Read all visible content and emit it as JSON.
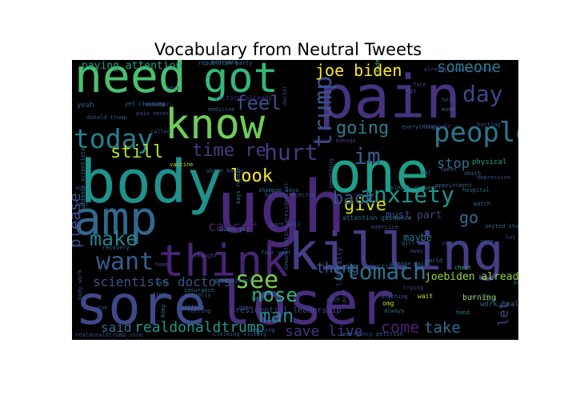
{
  "figure": {
    "title": "Vocabulary from Neutral Tweets",
    "background": "#ffffff",
    "canvas_background": "#000000",
    "colormap": "viridis"
  },
  "wordcloud": {
    "words": [
      {
        "text": "need",
        "color": "#4ac16d"
      },
      {
        "text": "got",
        "color": "#35b779"
      },
      {
        "text": "pain",
        "color": "#46327e"
      },
      {
        "text": "body",
        "color": "#21918c"
      },
      {
        "text": "ugh",
        "color": "#482878"
      },
      {
        "text": "one",
        "color": "#1f9e89"
      },
      {
        "text": "know",
        "color": "#6ece58"
      },
      {
        "text": "amp",
        "color": "#31688e"
      },
      {
        "text": "sore",
        "color": "#3e4989"
      },
      {
        "text": "loser",
        "color": "#472d7b"
      },
      {
        "text": "killing",
        "color": "#433e85"
      },
      {
        "text": "think",
        "color": "#482475"
      },
      {
        "text": "today",
        "color": "#26828e"
      },
      {
        "text": "people",
        "color": "#2a788e"
      },
      {
        "text": "anxiety",
        "color": "#1f968b"
      },
      {
        "text": "want",
        "color": "#365c8d"
      },
      {
        "text": "stomach",
        "color": "#2c728e"
      },
      {
        "text": "trump",
        "color": "#3b528b"
      },
      {
        "text": "hurt",
        "color": "#443a83"
      },
      {
        "text": "im",
        "color": "#375a8c"
      },
      {
        "text": "day",
        "color": "#3f4788"
      },
      {
        "text": "feel",
        "color": "#3d4d8a"
      },
      {
        "text": "joe biden",
        "color": "#fde725"
      },
      {
        "text": "someone",
        "color": "#277f8e"
      },
      {
        "text": "going",
        "color": "#287c8e"
      },
      {
        "text": "still",
        "color": "#b5de2b"
      },
      {
        "text": "time re",
        "color": "#433d84"
      },
      {
        "text": "look",
        "color": "#fde725"
      },
      {
        "text": "give",
        "color": "#d8e219"
      },
      {
        "text": "back",
        "color": "#39568c"
      },
      {
        "text": "stop",
        "color": "#2c718e"
      },
      {
        "text": "see",
        "color": "#7ad151"
      },
      {
        "text": "nose",
        "color": "#2db27d"
      },
      {
        "text": "man",
        "color": "#238a8d"
      },
      {
        "text": "make",
        "color": "#25858e"
      },
      {
        "text": "cancer",
        "color": "#481f70"
      },
      {
        "text": "please",
        "color": "#3b518b"
      },
      {
        "text": "go",
        "color": "#2d708e"
      },
      {
        "text": "must part",
        "color": "#414487"
      },
      {
        "text": "thing",
        "color": "#345f8d"
      },
      {
        "text": "scientists doctors",
        "color": "#3a548c"
      },
      {
        "text": "said",
        "color": "#2f6b8e"
      },
      {
        "text": "realdonaldtrump",
        "color": "#1f988b"
      },
      {
        "text": "save live",
        "color": "#453581"
      },
      {
        "text": "come",
        "color": "#482173"
      },
      {
        "text": "take",
        "color": "#2e6e8e"
      },
      {
        "text": "let",
        "color": "#3f4889"
      },
      {
        "text": "paying attention",
        "color": "#1fa287"
      },
      {
        "text": "maybe",
        "color": "#2a768e"
      },
      {
        "text": "joebiden already",
        "color": "#90d743"
      },
      {
        "text": "burning",
        "color": "#a2da37"
      },
      {
        "text": "presidential leadership",
        "color": "#3e4a89"
      },
      {
        "text": "already demonstrating",
        "color": "#404688"
      },
      {
        "text": "republican party",
        "color": "#2f6c8e"
      },
      {
        "text": "guidance scientists",
        "color": "#2b758e"
      },
      {
        "text": "body work",
        "color": "#3c4f8a"
      },
      {
        "text": "yet claiming",
        "color": "#2e6d8e"
      },
      {
        "text": "pain never",
        "color": "#3c508b"
      },
      {
        "text": "victory already",
        "color": "#46307e"
      },
      {
        "text": "doctor",
        "color": "#3e4c8a"
      },
      {
        "text": "white house",
        "color": "#35608d"
      },
      {
        "text": "vaccine",
        "color": "#c2df23"
      },
      {
        "text": "gonna",
        "color": "#2b748e"
      },
      {
        "text": "chest",
        "color": "#25ab82"
      },
      {
        "text": "work heal",
        "color": "#2e6f8e"
      },
      {
        "text": "god",
        "color": "#34618d"
      },
      {
        "text": "hand",
        "color": "#2a778e"
      },
      {
        "text": "covid19",
        "color": "#3f4a8a"
      },
      {
        "text": "hurting",
        "color": "#3b528b"
      },
      {
        "text": "physical",
        "color": "#21a585"
      },
      {
        "text": "depression",
        "color": "#3d4e8a"
      },
      {
        "text": "hospital",
        "color": "#2f6b8e"
      },
      {
        "text": "headache",
        "color": "#472c7a"
      },
      {
        "text": "everything",
        "color": "#33638d"
      },
      {
        "text": "medicine",
        "color": "#355f8d"
      },
      {
        "text": "donald trump",
        "color": "#3a538b"
      },
      {
        "text": "shampoo says",
        "color": "#2c718e"
      },
      {
        "text": "kays repair",
        "color": "#2a778e"
      },
      {
        "text": "ballot rejected",
        "color": "#3b518b"
      },
      {
        "text": "leadership paying",
        "color": "#44bf70"
      },
      {
        "text": "attention guidance",
        "color": "#2b748e"
      },
      {
        "text": "united states",
        "color": "#2d708e"
      },
      {
        "text": "damage pain",
        "color": "#34608d"
      },
      {
        "text": "repair damage",
        "color": "#463480"
      },
      {
        "text": "demonstrating presidential",
        "color": "#3e4c8a"
      },
      {
        "text": "emergency petition",
        "color": "#375b8d"
      },
      {
        "text": "realdonaldtrump sore",
        "color": "#3d4e8a"
      },
      {
        "text": "claiming victory",
        "color": "#355e8d"
      },
      {
        "text": "watching",
        "color": "#3b528b"
      },
      {
        "text": "biden yet",
        "color": "#2c728e"
      },
      {
        "text": "part well",
        "color": "#365c8d"
      },
      {
        "text": "four year",
        "color": "#38598c"
      },
      {
        "text": "election",
        "color": "#3e4989"
      },
      {
        "text": "please retweet",
        "color": "#2d718e"
      },
      {
        "text": "appointment",
        "color": "#34618d"
      },
      {
        "text": "literally",
        "color": "#3c4f8a"
      },
      {
        "text": "people",
        "color": "#375a8c"
      },
      {
        "text": "thought",
        "color": "#3f4788"
      },
      {
        "text": "recovery",
        "color": "#31688e"
      },
      {
        "text": "insurance",
        "color": "#2c728e"
      },
      {
        "text": "feeling",
        "color": "#3b528b"
      },
      {
        "text": "getting",
        "color": "#355f8d"
      },
      {
        "text": "actually",
        "color": "#2f6c8e"
      },
      {
        "text": "something",
        "color": "#3e4a89"
      },
      {
        "text": "exercise",
        "color": "#39568c"
      },
      {
        "text": "patient",
        "color": "#2e6e8e"
      },
      {
        "text": "anything",
        "color": "#38588c"
      },
      {
        "text": "trying",
        "color": "#3d4d8a"
      },
      {
        "text": "always",
        "color": "#2d708e"
      },
      {
        "text": "cause",
        "color": "#3f4889"
      },
      {
        "text": "wait",
        "color": "#c8e020"
      },
      {
        "text": "ouch",
        "color": "#34618d"
      },
      {
        "text": "omg",
        "color": "#bddf26"
      },
      {
        "text": "girl",
        "color": "#2c718e"
      },
      {
        "text": "away",
        "color": "#3b518b"
      },
      {
        "text": "world",
        "color": "#2a778e"
      },
      {
        "text": "read",
        "color": "#39568c"
      },
      {
        "text": "lot",
        "color": "#3e4c8a"
      },
      {
        "text": "cure",
        "color": "#31688e"
      },
      {
        "text": "death",
        "color": "#35608d"
      },
      {
        "text": "watch",
        "color": "#2e6f8e"
      },
      {
        "text": "tweet",
        "color": "#3a538b"
      },
      {
        "text": "face",
        "color": "#3e4989"
      },
      {
        "text": "even",
        "color": "#2f6b8e"
      },
      {
        "text": "hit",
        "color": "#375b8d"
      },
      {
        "text": "help",
        "color": "#3f4a8a"
      },
      {
        "text": "yeah",
        "color": "#38598c"
      },
      {
        "text": "neck",
        "color": "#3c508b"
      },
      {
        "text": "remember",
        "color": "#3b528b"
      },
      {
        "text": "everyone",
        "color": "#2f6c8e"
      },
      {
        "text": "called",
        "color": "#355e8d"
      },
      {
        "text": "home",
        "color": "#3e4c8a"
      },
      {
        "text": "talk",
        "color": "#2c728e"
      },
      {
        "text": "eye",
        "color": "#365c8d"
      },
      {
        "text": "find",
        "color": "#39568c"
      },
      {
        "text": "keep",
        "color": "#2b748e"
      },
      {
        "text": "damn",
        "color": "#3d4e8a"
      },
      {
        "text": "call",
        "color": "#2d708e"
      },
      {
        "text": "eat",
        "color": "#3b518b"
      },
      {
        "text": "fact",
        "color": "#34608d"
      },
      {
        "text": "ass",
        "color": "#3e4a89"
      }
    ]
  }
}
